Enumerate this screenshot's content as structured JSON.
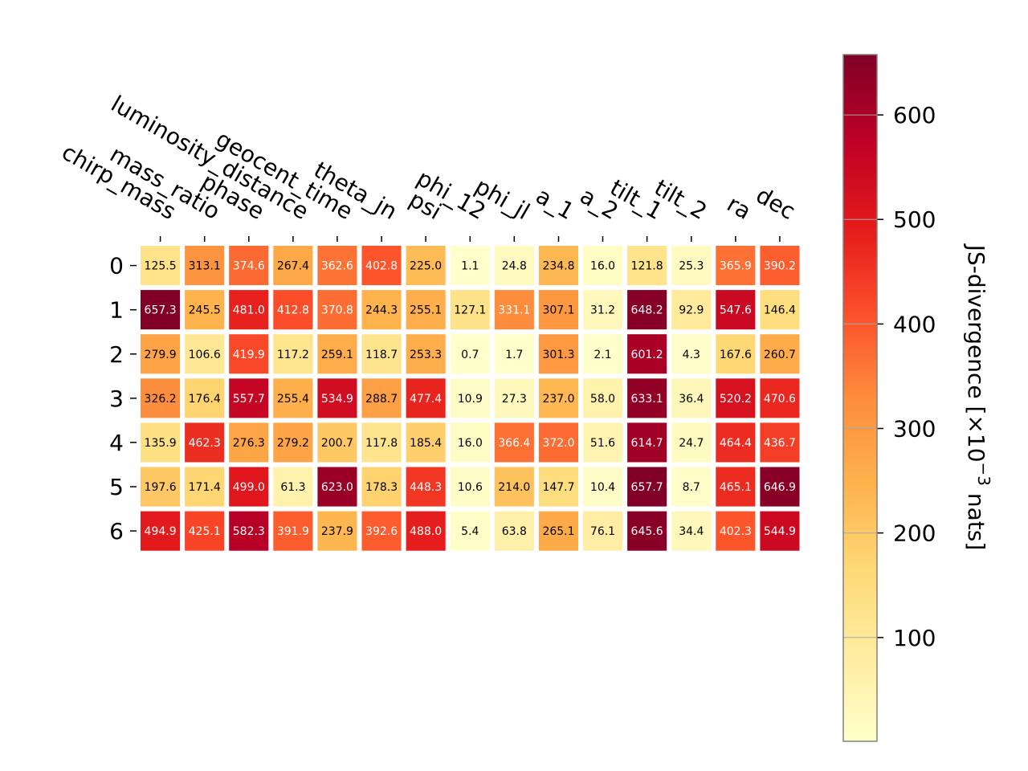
{
  "chart_data": {
    "type": "heatmap",
    "columns": [
      "chirp_mass",
      "mass_ratio",
      "phase",
      "luminosity_distance",
      "geocent_time",
      "theta_jn",
      "psi",
      "phi_12",
      "phi_jl",
      "a_1",
      "a_2",
      "tilt_1",
      "tilt_2",
      "ra",
      "dec"
    ],
    "rows": [
      "0",
      "1",
      "2",
      "3",
      "4",
      "5",
      "6"
    ],
    "values": [
      [
        125.5,
        313.1,
        374.6,
        267.4,
        362.6,
        402.8,
        225.0,
        1.1,
        24.8,
        234.8,
        16.0,
        121.8,
        25.3,
        365.9,
        390.2
      ],
      [
        657.3,
        245.5,
        481.0,
        412.8,
        370.8,
        244.3,
        255.1,
        127.1,
        331.1,
        307.1,
        31.2,
        648.2,
        92.9,
        547.6,
        146.4
      ],
      [
        279.9,
        106.6,
        419.9,
        117.2,
        259.1,
        118.7,
        253.3,
        0.7,
        1.7,
        301.3,
        2.1,
        601.2,
        4.3,
        167.6,
        260.7
      ],
      [
        326.2,
        176.4,
        557.7,
        255.4,
        534.9,
        288.7,
        477.4,
        10.9,
        27.3,
        237.0,
        58.0,
        633.1,
        36.4,
        520.2,
        470.6
      ],
      [
        135.9,
        462.3,
        276.3,
        279.2,
        200.7,
        117.8,
        185.4,
        16.0,
        366.4,
        372.0,
        51.6,
        614.7,
        24.7,
        464.4,
        436.7
      ],
      [
        197.6,
        171.4,
        499.0,
        61.3,
        623.0,
        178.3,
        448.3,
        10.6,
        214.0,
        147.7,
        10.4,
        657.7,
        8.7,
        465.1,
        646.9
      ],
      [
        494.9,
        425.1,
        582.3,
        391.9,
        237.9,
        392.6,
        488.0,
        5.4,
        63.8,
        265.1,
        76.1,
        645.6,
        34.4,
        402.3,
        544.9
      ]
    ],
    "colormap": "YlOrRd",
    "colormap_stops": [
      "#ffffcc",
      "#ffeda0",
      "#fed976",
      "#feb24c",
      "#fd8d3c",
      "#fc4e2a",
      "#e31a1c",
      "#bd0026",
      "#800026"
    ],
    "vmin": 0.7,
    "vmax": 657.7,
    "colorbar": {
      "ticks": [
        100,
        200,
        300,
        400,
        500,
        600
      ],
      "label": "JS-divergence [×10",
      "label_exponent": "−3",
      "label_suffix": " nats]"
    },
    "text_threshold": 329.2,
    "text_dark": "#000000",
    "text_light": "#ffffff"
  }
}
